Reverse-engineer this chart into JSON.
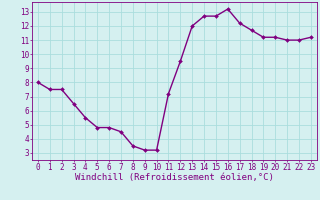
{
  "x": [
    0,
    1,
    2,
    3,
    4,
    5,
    6,
    7,
    8,
    9,
    10,
    11,
    12,
    13,
    14,
    15,
    16,
    17,
    18,
    19,
    20,
    21,
    22,
    23
  ],
  "y": [
    8.0,
    7.5,
    7.5,
    6.5,
    5.5,
    4.8,
    4.8,
    4.5,
    3.5,
    3.2,
    3.2,
    7.2,
    9.5,
    12.0,
    12.7,
    12.7,
    13.2,
    12.2,
    11.7,
    11.2,
    11.2,
    11.0,
    11.0,
    11.2
  ],
  "line_color": "#800080",
  "marker": "D",
  "marker_size": 2.0,
  "bg_color": "#d5f0f0",
  "grid_color": "#aadddd",
  "xlabel": "Windchill (Refroidissement éolien,°C)",
  "xlabel_color": "#800080",
  "xlabel_fontsize": 6.5,
  "yticks": [
    3,
    4,
    5,
    6,
    7,
    8,
    9,
    10,
    11,
    12,
    13
  ],
  "xticks": [
    0,
    1,
    2,
    3,
    4,
    5,
    6,
    7,
    8,
    9,
    10,
    11,
    12,
    13,
    14,
    15,
    16,
    17,
    18,
    19,
    20,
    21,
    22,
    23
  ],
  "ylim": [
    2.5,
    13.7
  ],
  "xlim": [
    -0.5,
    23.5
  ],
  "tick_color": "#800080",
  "tick_fontsize": 5.5,
  "spine_color": "#800080",
  "line_width": 1.0
}
